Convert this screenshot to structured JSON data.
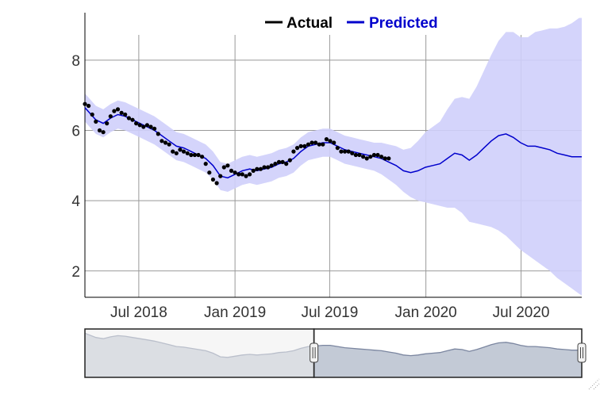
{
  "legend": {
    "actual_label": "Actual",
    "predicted_label": "Predicted"
  },
  "colors": {
    "actual": "#000000",
    "predicted": "#0000cc",
    "band": "#cfcffb",
    "grid": "#999999",
    "axis": "#000000",
    "navigator_selected": "#a7afc0",
    "navigator_unselected": "#eeeeee",
    "navigator_line": "#7b86a0"
  },
  "chart_data": {
    "type": "line",
    "title": "",
    "xlabel": "",
    "ylabel": "",
    "x_range": [
      "2018-03-20",
      "2020-10-25"
    ],
    "ylim": [
      1.25,
      9.35
    ],
    "y_ticks": [
      2,
      4,
      6,
      8
    ],
    "x_ticks": [
      {
        "date": "2018-07-01",
        "label": "Jul 2018"
      },
      {
        "date": "2019-01-01",
        "label": "Jan 2019"
      },
      {
        "date": "2019-07-01",
        "label": "Jul 2019"
      },
      {
        "date": "2020-01-01",
        "label": "Jan 2020"
      },
      {
        "date": "2020-07-01",
        "label": "Jul 2020"
      }
    ],
    "grid": true,
    "legend_position": "top-center",
    "series": [
      {
        "name": "Actual",
        "style": "markers",
        "x": [
          "2018-03-20",
          "2018-03-27",
          "2018-04-03",
          "2018-04-10",
          "2018-04-17",
          "2018-04-24",
          "2018-05-01",
          "2018-05-08",
          "2018-05-15",
          "2018-05-22",
          "2018-05-29",
          "2018-06-05",
          "2018-06-12",
          "2018-06-19",
          "2018-06-26",
          "2018-07-03",
          "2018-07-10",
          "2018-07-17",
          "2018-07-24",
          "2018-07-31",
          "2018-08-07",
          "2018-08-14",
          "2018-08-21",
          "2018-08-28",
          "2018-09-04",
          "2018-09-11",
          "2018-09-18",
          "2018-09-25",
          "2018-10-02",
          "2018-10-09",
          "2018-10-16",
          "2018-10-23",
          "2018-10-30",
          "2018-11-06",
          "2018-11-13",
          "2018-11-20",
          "2018-11-27",
          "2018-12-04",
          "2018-12-11",
          "2018-12-18",
          "2018-12-25",
          "2019-01-01",
          "2019-01-08",
          "2019-01-15",
          "2019-01-22",
          "2019-01-29",
          "2019-02-05",
          "2019-02-12",
          "2019-02-19",
          "2019-02-26",
          "2019-03-05",
          "2019-03-12",
          "2019-03-19",
          "2019-03-26",
          "2019-04-02",
          "2019-04-09",
          "2019-04-16",
          "2019-04-23",
          "2019-04-30",
          "2019-05-07",
          "2019-05-14",
          "2019-05-21",
          "2019-05-28",
          "2019-06-04",
          "2019-06-11",
          "2019-06-18",
          "2019-06-25",
          "2019-07-02",
          "2019-07-09",
          "2019-07-16",
          "2019-07-23",
          "2019-07-30",
          "2019-08-06",
          "2019-08-13",
          "2019-08-20",
          "2019-08-27",
          "2019-09-03",
          "2019-09-10",
          "2019-09-17",
          "2019-09-24",
          "2019-10-01",
          "2019-10-08",
          "2019-10-15",
          "2019-10-22"
        ],
        "y": [
          6.75,
          6.7,
          6.45,
          6.25,
          6.0,
          5.95,
          6.2,
          6.4,
          6.55,
          6.6,
          6.5,
          6.45,
          6.35,
          6.3,
          6.2,
          6.15,
          6.1,
          6.15,
          6.1,
          6.05,
          5.9,
          5.7,
          5.65,
          5.6,
          5.4,
          5.35,
          5.45,
          5.4,
          5.35,
          5.3,
          5.3,
          5.3,
          5.25,
          5.05,
          4.8,
          4.6,
          4.5,
          4.7,
          4.95,
          5.0,
          4.85,
          4.8,
          4.75,
          4.75,
          4.7,
          4.75,
          4.85,
          4.9,
          4.9,
          4.95,
          4.95,
          5.0,
          5.05,
          5.1,
          5.1,
          5.05,
          5.15,
          5.4,
          5.5,
          5.55,
          5.55,
          5.6,
          5.65,
          5.65,
          5.6,
          5.6,
          5.75,
          5.7,
          5.65,
          5.5,
          5.4,
          5.4,
          5.4,
          5.35,
          5.3,
          5.3,
          5.25,
          5.2,
          5.25,
          5.3,
          5.3,
          5.25,
          5.2,
          5.2
        ]
      },
      {
        "name": "Predicted",
        "style": "line",
        "x": [
          "2018-03-20",
          "2018-04-10",
          "2018-04-24",
          "2018-05-08",
          "2018-05-22",
          "2018-06-05",
          "2018-06-19",
          "2018-07-03",
          "2018-07-17",
          "2018-07-31",
          "2018-08-14",
          "2018-08-28",
          "2018-09-11",
          "2018-09-25",
          "2018-10-09",
          "2018-10-23",
          "2018-11-06",
          "2018-11-20",
          "2018-12-04",
          "2018-12-18",
          "2019-01-01",
          "2019-01-15",
          "2019-01-29",
          "2019-02-12",
          "2019-02-26",
          "2019-03-12",
          "2019-03-26",
          "2019-04-09",
          "2019-04-23",
          "2019-05-07",
          "2019-05-21",
          "2019-06-04",
          "2019-06-18",
          "2019-07-02",
          "2019-07-16",
          "2019-07-30",
          "2019-08-13",
          "2019-08-27",
          "2019-09-10",
          "2019-09-24",
          "2019-10-08",
          "2019-10-22",
          "2019-11-05",
          "2019-11-19",
          "2019-12-03",
          "2019-12-17",
          "2019-12-31",
          "2020-01-14",
          "2020-01-28",
          "2020-02-11",
          "2020-02-25",
          "2020-03-10",
          "2020-03-24",
          "2020-04-07",
          "2020-04-21",
          "2020-05-05",
          "2020-05-19",
          "2020-06-02",
          "2020-06-16",
          "2020-06-30",
          "2020-07-14",
          "2020-07-28",
          "2020-08-11",
          "2020-08-25",
          "2020-09-08",
          "2020-09-22",
          "2020-10-06",
          "2020-10-20",
          "2020-10-25"
        ],
        "y": [
          6.65,
          6.3,
          6.2,
          6.35,
          6.45,
          6.4,
          6.3,
          6.2,
          6.1,
          6.0,
          5.85,
          5.7,
          5.55,
          5.5,
          5.4,
          5.3,
          5.2,
          5.0,
          4.7,
          4.65,
          4.75,
          4.85,
          4.9,
          4.85,
          4.9,
          4.95,
          5.05,
          5.1,
          5.2,
          5.4,
          5.55,
          5.6,
          5.65,
          5.65,
          5.55,
          5.45,
          5.4,
          5.35,
          5.3,
          5.25,
          5.2,
          5.1,
          5.0,
          4.85,
          4.8,
          4.85,
          4.95,
          5.0,
          5.05,
          5.2,
          5.35,
          5.3,
          5.15,
          5.3,
          5.5,
          5.7,
          5.85,
          5.9,
          5.8,
          5.65,
          5.55,
          5.55,
          5.5,
          5.45,
          5.35,
          5.3,
          5.25,
          5.25,
          5.25
        ]
      },
      {
        "name": "",
        "style": "band",
        "x": [
          "2018-03-20",
          "2018-04-10",
          "2018-04-24",
          "2018-05-08",
          "2018-05-22",
          "2018-06-05",
          "2018-06-19",
          "2018-07-03",
          "2018-07-17",
          "2018-07-31",
          "2018-08-14",
          "2018-08-28",
          "2018-09-11",
          "2018-09-25",
          "2018-10-09",
          "2018-10-23",
          "2018-11-06",
          "2018-11-20",
          "2018-12-04",
          "2018-12-18",
          "2019-01-01",
          "2019-01-15",
          "2019-01-29",
          "2019-02-12",
          "2019-02-26",
          "2019-03-12",
          "2019-03-26",
          "2019-04-09",
          "2019-04-23",
          "2019-05-07",
          "2019-05-21",
          "2019-06-04",
          "2019-06-18",
          "2019-07-02",
          "2019-07-16",
          "2019-07-30",
          "2019-08-13",
          "2019-08-27",
          "2019-09-10",
          "2019-09-24",
          "2019-10-08",
          "2019-10-22",
          "2019-11-05",
          "2019-11-19",
          "2019-12-03",
          "2019-12-17",
          "2019-12-31",
          "2020-01-14",
          "2020-01-28",
          "2020-02-11",
          "2020-02-25",
          "2020-03-10",
          "2020-03-24",
          "2020-04-07",
          "2020-04-21",
          "2020-05-05",
          "2020-05-19",
          "2020-06-02",
          "2020-06-16",
          "2020-06-30",
          "2020-07-14",
          "2020-07-28",
          "2020-08-11",
          "2020-08-25",
          "2020-09-08",
          "2020-09-22",
          "2020-10-06",
          "2020-10-20",
          "2020-10-25"
        ],
        "lower": [
          6.25,
          5.9,
          5.8,
          5.95,
          6.05,
          6.0,
          5.9,
          5.8,
          5.7,
          5.6,
          5.45,
          5.3,
          5.15,
          5.1,
          5.0,
          4.9,
          4.8,
          4.6,
          4.3,
          4.25,
          4.35,
          4.45,
          4.5,
          4.45,
          4.5,
          4.55,
          4.65,
          4.7,
          4.8,
          5.0,
          5.15,
          5.2,
          5.25,
          5.25,
          5.15,
          5.05,
          5.0,
          4.95,
          4.9,
          4.85,
          4.75,
          4.6,
          4.45,
          4.25,
          4.1,
          4.0,
          3.95,
          3.9,
          3.85,
          3.8,
          3.8,
          3.65,
          3.4,
          3.35,
          3.3,
          3.25,
          3.15,
          3.0,
          2.8,
          2.6,
          2.45,
          2.3,
          2.15,
          2.0,
          1.8,
          1.65,
          1.5,
          1.35,
          1.3
        ],
        "upper": [
          7.05,
          6.7,
          6.6,
          6.75,
          6.85,
          6.8,
          6.7,
          6.6,
          6.5,
          6.4,
          6.25,
          6.1,
          5.95,
          5.9,
          5.8,
          5.7,
          5.6,
          5.4,
          5.1,
          5.05,
          5.15,
          5.25,
          5.3,
          5.25,
          5.3,
          5.35,
          5.45,
          5.5,
          5.6,
          5.8,
          5.95,
          6.0,
          6.05,
          6.05,
          5.95,
          5.85,
          5.8,
          5.75,
          5.7,
          5.65,
          5.65,
          5.6,
          5.55,
          5.45,
          5.5,
          5.7,
          5.95,
          6.1,
          6.25,
          6.6,
          6.9,
          6.95,
          6.9,
          7.25,
          7.7,
          8.15,
          8.55,
          8.8,
          8.8,
          8.65,
          8.65,
          8.8,
          8.85,
          8.9,
          8.9,
          8.95,
          9.05,
          9.2,
          9.2
        ]
      }
    ],
    "navigator": {
      "selected_range": [
        "2019-06-01",
        "2020-10-25"
      ]
    }
  }
}
